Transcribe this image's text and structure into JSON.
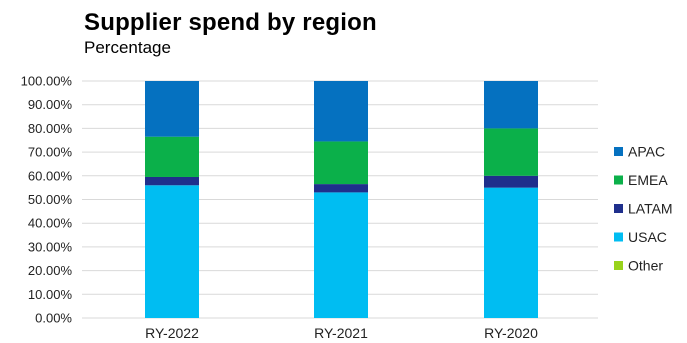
{
  "chart_data": {
    "type": "bar",
    "stacked": true,
    "title": "Supplier spend by region",
    "subtitle": "Percentage",
    "categories": [
      "RY-2022",
      "RY-2021",
      "RY-2020"
    ],
    "ylim": [
      0,
      100
    ],
    "ytick_labels": [
      "0.00%",
      "10.00%",
      "20.00%",
      "30.00%",
      "40.00%",
      "50.00%",
      "60.00%",
      "70.00%",
      "80.00%",
      "90.00%",
      "100.00%"
    ],
    "grid": true,
    "legend_position": "right",
    "series": [
      {
        "name": "USAC",
        "color": "#00bdf2",
        "values": [
          56,
          53,
          55
        ]
      },
      {
        "name": "LATAM",
        "color": "#1f2f8c",
        "values": [
          3.5,
          3.5,
          5
        ]
      },
      {
        "name": "EMEA",
        "color": "#0bb04a",
        "values": [
          17,
          18,
          20
        ]
      },
      {
        "name": "APAC",
        "color": "#0571c0",
        "values": [
          23.5,
          25.5,
          20
        ]
      },
      {
        "name": "Other",
        "color": "#99d31c",
        "values": [
          0,
          0,
          0
        ]
      }
    ],
    "legend_order": [
      "APAC",
      "EMEA",
      "LATAM",
      "USAC",
      "Other"
    ]
  }
}
